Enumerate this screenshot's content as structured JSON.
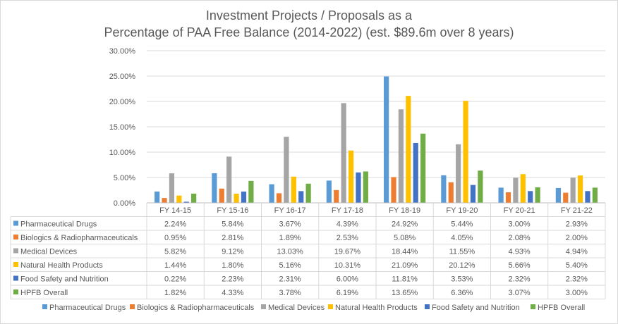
{
  "chart_data": {
    "type": "bar",
    "title_line1": "Investment Projects / Proposals as a",
    "title_line2": "Percentage of PAA Free Balance (2014-2022) (est. $89.6m over 8 years)",
    "categories": [
      "FY 14-15",
      "FY 15-16",
      "FY 16-17",
      "FY 17-18",
      "FY 18-19",
      "FY 19-20",
      "FY 20-21",
      "FY 21-22"
    ],
    "ylim": [
      0,
      30
    ],
    "yticks": [
      0,
      5,
      10,
      15,
      20,
      25,
      30
    ],
    "ytick_labels": [
      "0.00%",
      "5.00%",
      "10.00%",
      "15.00%",
      "20.00%",
      "25.00%",
      "30.00%"
    ],
    "grid": true,
    "legend_position": "bottom",
    "data_table": true,
    "series": [
      {
        "name": "Pharmaceutical Drugs",
        "color": "#5b9bd5",
        "values": [
          2.24,
          5.84,
          3.67,
          4.39,
          24.92,
          5.44,
          3.0,
          2.93
        ],
        "labels": [
          "2.24%",
          "5.84%",
          "3.67%",
          "4.39%",
          "24.92%",
          "5.44%",
          "3.00%",
          "2.93%"
        ]
      },
      {
        "name": "Biologics & Radiopharmaceuticals",
        "color": "#ed7d31",
        "values": [
          0.95,
          2.81,
          1.89,
          2.53,
          5.08,
          4.05,
          2.08,
          2.0
        ],
        "labels": [
          "0.95%",
          "2.81%",
          "1.89%",
          "2.53%",
          "5.08%",
          "4.05%",
          "2.08%",
          "2.00%"
        ]
      },
      {
        "name": "Medical Devices",
        "color": "#a5a5a5",
        "values": [
          5.82,
          9.12,
          13.03,
          19.67,
          18.44,
          11.55,
          4.93,
          4.94
        ],
        "labels": [
          "5.82%",
          "9.12%",
          "13.03%",
          "19.67%",
          "18.44%",
          "11.55%",
          "4.93%",
          "4.94%"
        ]
      },
      {
        "name": "Natural Health Products",
        "color": "#ffc000",
        "values": [
          1.44,
          1.8,
          5.16,
          10.31,
          21.09,
          20.12,
          5.66,
          5.4
        ],
        "labels": [
          "1.44%",
          "1.80%",
          "5.16%",
          "10.31%",
          "21.09%",
          "20.12%",
          "5.66%",
          "5.40%"
        ]
      },
      {
        "name": "Food Safety and Nutrition",
        "color": "#4472c4",
        "values": [
          0.22,
          2.23,
          2.31,
          6.0,
          11.81,
          3.53,
          2.32,
          2.32
        ],
        "labels": [
          "0.22%",
          "2.23%",
          "2.31%",
          "6.00%",
          "11.81%",
          "3.53%",
          "2.32%",
          "2.32%"
        ]
      },
      {
        "name": "HPFB Overall",
        "color": "#70ad47",
        "values": [
          1.82,
          4.33,
          3.78,
          6.19,
          13.65,
          6.36,
          3.07,
          3.0
        ],
        "labels": [
          "1.82%",
          "4.33%",
          "3.78%",
          "6.19%",
          "13.65%",
          "6.36%",
          "3.07%",
          "3.00%"
        ]
      }
    ]
  }
}
